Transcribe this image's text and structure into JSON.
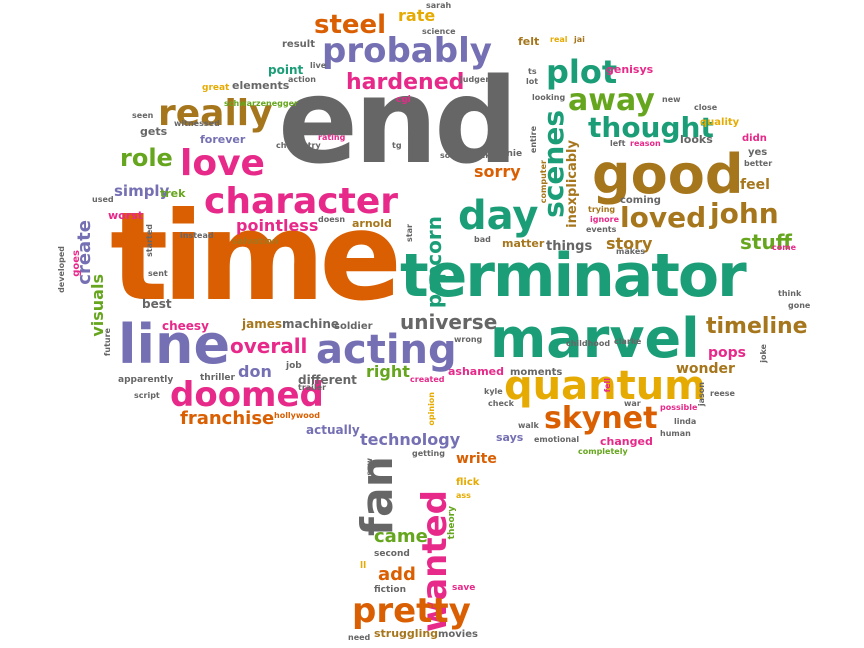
{
  "words": {
    "end": "end",
    "time": "time",
    "terminator": "terminator",
    "marvel": "marvel",
    "good": "good",
    "line": "line",
    "acting": "acting",
    "character": "character",
    "quantum": "quantum",
    "love": "love",
    "probably": "probably",
    "day": "day",
    "really": "really",
    "plot": "plot",
    "away": "away",
    "doomed": "doomed",
    "fan": "fan",
    "wanted": "wanted",
    "pretty": "pretty",
    "skynet": "skynet",
    "scenes": "scenes",
    "thought": "thought",
    "loved": "loved",
    "john": "john",
    "steel": "steel",
    "hardened": "hardened",
    "timeline": "timeline",
    "universe": "universe",
    "popcorn": "popcorn",
    "role": "role",
    "overall": "overall",
    "stuff": "stuff",
    "franchise": "franchise",
    "came": "came",
    "add": "add",
    "create": "create",
    "visuals": "visuals",
    "pointless": "pointless",
    "rate": "rate",
    "sorry": "sorry",
    "story": "story",
    "technology": "technology",
    "write": "write",
    "right": "right",
    "don": "don",
    "pops": "pops",
    "feel": "feel",
    "inexplicably": "inexplicably",
    "wonder": "wonder",
    "simply": "simply",
    "best": "best",
    "cheesy": "cheesy",
    "james": "james",
    "machine": "machine",
    "soldier": "soldier",
    "different": "different",
    "ashamed": "ashamed",
    "actually": "actually",
    "things": "things",
    "matter": "matter",
    "moments": "moments",
    "says": "says",
    "changed": "changed",
    "trek": "trek",
    "arnold": "arnold",
    "forever": "forever",
    "gets": "gets",
    "point": "point",
    "elements": "elements",
    "result": "result",
    "felt": "felt",
    "genisys": "genisys",
    "looks": "looks",
    "yes": "yes",
    "didn": "didn",
    "quality": "quality",
    "coming": "coming",
    "worst": "worst",
    "salvation": "salvation",
    "instead": "instead",
    "started": "started",
    "sent": "sent",
    "used": "used",
    "developed": "developed",
    "goes": "goes",
    "seen": "seen",
    "witnessed": "witnessed",
    "great": "great",
    "action": "action",
    "live": "live",
    "cgi": "cgi",
    "judgement": "judgement",
    "science": "science",
    "sarah": "sarah",
    "real": "real",
    "jai": "jai",
    "ts": "ts",
    "lot": "lot",
    "looking": "looking",
    "new": "new",
    "close": "close",
    "reason": "reason",
    "left": "left",
    "better": "better",
    "come": "come",
    "think": "think",
    "gone": "gone",
    "joke": "joke",
    "reese": "reese",
    "possible": "possible",
    "jason": "jason",
    "linda": "linda",
    "human": "human",
    "completely": "completely",
    "emotional": "emotional",
    "check": "check",
    "kyle": "kyle",
    "walk": "walk",
    "war": "war",
    "fell": "fell",
    "childhood": "childhood",
    "clarke": "clarke",
    "events": "events",
    "trying": "trying",
    "ignore": "ignore",
    "makes": "makes",
    "bad": "bad",
    "star": "star",
    "doesn": "doesn",
    "computer": "computer",
    "arnie": "arnie",
    "soundtrack": "soundtrack",
    "tg": "tg",
    "entire": "entire",
    "rating": "rating",
    "chemistry": "chemistry",
    "schwarzenegger": "schwarzenegger",
    "thriller": "thriller",
    "apparently": "apparently",
    "script": "script",
    "job": "job",
    "trailer": "trailer",
    "hollywood": "hollywood",
    "created": "created",
    "wrong": "wrong",
    "opinion": "opinion",
    "getting": "getting",
    "saw": "saw",
    "flick": "flick",
    "ass": "ass",
    "theory": "theory",
    "second": "second",
    "ll": "ll",
    "save": "save",
    "fiction": "fiction",
    "struggling": "struggling",
    "movies": "movies",
    "need": "need",
    "future": "future"
  }
}
